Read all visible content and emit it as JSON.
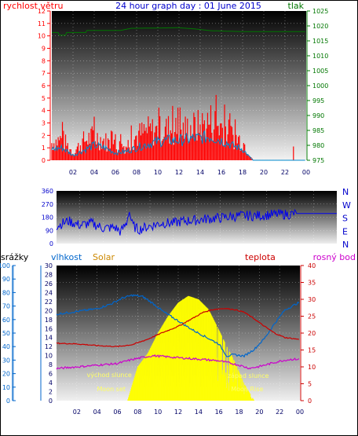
{
  "title": "24 hour graph day : 01 June 2015",
  "colors": {
    "wind": "#ff0000",
    "wind_avg": "#0088cc",
    "pressure": "#007700",
    "direction": "#0000ee",
    "rain": "#0066cc",
    "humidity": "#0066cc",
    "solar": "#ffff00",
    "temperature": "#cc0000",
    "dewpoint": "#cc00cc",
    "axis_title_solar": "#cc8800"
  },
  "chart_data": [
    {
      "type": "line",
      "name": "wind-pressure",
      "left_title": "rychlost větru",
      "right_title": "tlak",
      "x_ticks": [
        "02",
        "04",
        "06",
        "08",
        "10",
        "12",
        "14",
        "16",
        "18",
        "20",
        "22",
        "00"
      ],
      "left_ticks": [
        "0",
        "1",
        "2",
        "3",
        "4",
        "5",
        "6",
        "7",
        "8",
        "9",
        "10",
        "11",
        "12"
      ],
      "right_ticks": [
        "975",
        "980",
        "985",
        "990",
        "995",
        "1000",
        "1005",
        "1010",
        "1015",
        "1020",
        "1025"
      ],
      "ylim_left": [
        0,
        12
      ],
      "ylim_right": [
        975,
        1025
      ],
      "xlim_hours": [
        0,
        24
      ],
      "wind_gust_profile": [
        [
          0,
          1.8
        ],
        [
          1,
          2.2
        ],
        [
          2,
          0.8
        ],
        [
          3,
          2.0
        ],
        [
          4,
          2.5
        ],
        [
          5,
          2.0
        ],
        [
          6,
          1.5
        ],
        [
          7,
          1.5
        ],
        [
          8,
          2.5
        ],
        [
          9,
          3.0
        ],
        [
          10,
          3.0
        ],
        [
          11,
          3.2
        ],
        [
          12,
          3.0
        ],
        [
          13,
          3.3
        ],
        [
          14,
          3.5
        ],
        [
          15,
          4.0
        ],
        [
          16,
          3.5
        ],
        [
          17,
          2.5
        ],
        [
          18,
          2.0
        ],
        [
          18.5,
          1.0
        ],
        [
          19,
          0
        ],
        [
          22.7,
          0
        ],
        [
          22.8,
          1.0
        ],
        [
          22.9,
          0
        ],
        [
          24,
          0
        ]
      ],
      "wind_avg_profile": [
        [
          0,
          0.9
        ],
        [
          1,
          1.0
        ],
        [
          2,
          0.4
        ],
        [
          3,
          0.8
        ],
        [
          4,
          1.2
        ],
        [
          5,
          1.0
        ],
        [
          6,
          0.6
        ],
        [
          7,
          0.7
        ],
        [
          8,
          1.0
        ],
        [
          9,
          1.3
        ],
        [
          10,
          1.5
        ],
        [
          11,
          1.6
        ],
        [
          12,
          1.6
        ],
        [
          13,
          1.7
        ],
        [
          14,
          1.8
        ],
        [
          15,
          1.9
        ],
        [
          16,
          1.6
        ],
        [
          17,
          1.2
        ],
        [
          18,
          0.9
        ],
        [
          18.5,
          0.4
        ],
        [
          19,
          0
        ],
        [
          24,
          0
        ]
      ],
      "pressure": [
        [
          0,
          1017.8
        ],
        [
          0.6,
          1017.8
        ],
        [
          0.7,
          1016.9
        ],
        [
          1.3,
          1016.9
        ],
        [
          1.4,
          1017.8
        ],
        [
          3.2,
          1017.8
        ],
        [
          3.3,
          1018.5
        ],
        [
          6.5,
          1018.5
        ],
        [
          7.5,
          1019.2
        ],
        [
          12,
          1019.4
        ],
        [
          13.5,
          1019.0
        ],
        [
          15,
          1018.4
        ],
        [
          18,
          1018.1
        ],
        [
          24,
          1018.1
        ]
      ]
    },
    {
      "type": "line",
      "name": "wind-direction",
      "left_ticks": [
        "0",
        "90",
        "180",
        "270",
        "360"
      ],
      "right_labels": [
        "N",
        "W",
        "S",
        "E",
        "N"
      ],
      "ylim": [
        0,
        360
      ],
      "direction_profile": [
        [
          0,
          120
        ],
        [
          1,
          155
        ],
        [
          2,
          125
        ],
        [
          3,
          140
        ],
        [
          4,
          105
        ],
        [
          5,
          110
        ],
        [
          5.5,
          80
        ],
        [
          6,
          140
        ],
        [
          6.2,
          230
        ],
        [
          6.5,
          125
        ],
        [
          7,
          95
        ],
        [
          8,
          120
        ],
        [
          9,
          140
        ],
        [
          10,
          140
        ],
        [
          11,
          155
        ],
        [
          12,
          160
        ],
        [
          13,
          170
        ],
        [
          14,
          175
        ],
        [
          15,
          185
        ],
        [
          16,
          190
        ],
        [
          17,
          190
        ],
        [
          18,
          195
        ],
        [
          19,
          200
        ],
        [
          20,
          200
        ],
        [
          20.5,
          205
        ],
        [
          24,
          205
        ]
      ]
    },
    {
      "type": "line",
      "name": "rain-humidity-solar-temperature",
      "rain_title": "srážky",
      "humidity_title": "vlhkost",
      "solar_title": "Solar",
      "temp_title": "teplota",
      "dew_title": "rosný bod",
      "rain_ticks": [
        "0",
        "10",
        "20",
        "30",
        "40",
        "50",
        "60",
        "70",
        "80",
        "90",
        "100"
      ],
      "humidity_ticks": [
        "0",
        "2",
        "4",
        "6",
        "8",
        "10",
        "12",
        "14",
        "16",
        "18",
        "20",
        "22",
        "24",
        "26",
        "28",
        "30"
      ],
      "temp_ticks": [
        "0",
        "5",
        "10",
        "15",
        "20",
        "25",
        "30",
        "35",
        "40"
      ],
      "ylim_left": [
        0,
        100
      ],
      "ylim_right": [
        0,
        40
      ],
      "humidity": [
        [
          0,
          64
        ],
        [
          2,
          66
        ],
        [
          4,
          68
        ],
        [
          5.5,
          72
        ],
        [
          6.5,
          76
        ],
        [
          7.5,
          78
        ],
        [
          8.5,
          77
        ],
        [
          9.5,
          72
        ],
        [
          10.5,
          66
        ],
        [
          12,
          59
        ],
        [
          13.5,
          52
        ],
        [
          15,
          46
        ],
        [
          16,
          42
        ],
        [
          16.8,
          33
        ],
        [
          17.5,
          34
        ],
        [
          18.5,
          33
        ],
        [
          19.5,
          38
        ],
        [
          20.5,
          46
        ],
        [
          21.5,
          57
        ],
        [
          22.5,
          67
        ],
        [
          24,
          73
        ]
      ],
      "temperature": [
        [
          0,
          17.0
        ],
        [
          2,
          16.8
        ],
        [
          4,
          16.3
        ],
        [
          6,
          16.0
        ],
        [
          7.5,
          16.6
        ],
        [
          9,
          18.2
        ],
        [
          10.5,
          20.2
        ],
        [
          12,
          22.0
        ],
        [
          13.5,
          24.5
        ],
        [
          14.5,
          26.2
        ],
        [
          15.5,
          27.0
        ],
        [
          16.5,
          27.3
        ],
        [
          17.5,
          27.0
        ],
        [
          18.5,
          26.2
        ],
        [
          19.5,
          24.2
        ],
        [
          20.5,
          22.0
        ],
        [
          21.5,
          20.0
        ],
        [
          22.5,
          18.7
        ],
        [
          24,
          18.1
        ]
      ],
      "dewpoint": [
        [
          0,
          9.5
        ],
        [
          2,
          10.0
        ],
        [
          4,
          10.5
        ],
        [
          6,
          11.0
        ],
        [
          7.5,
          12.2
        ],
        [
          8.5,
          12.8
        ],
        [
          9.5,
          13.3
        ],
        [
          10.5,
          13.1
        ],
        [
          12,
          12.7
        ],
        [
          14,
          12.3
        ],
        [
          16,
          11.8
        ],
        [
          17,
          11.2
        ],
        [
          18,
          10.5
        ],
        [
          19,
          9.6
        ],
        [
          20,
          10.1
        ],
        [
          21,
          10.9
        ],
        [
          22,
          11.7
        ],
        [
          23,
          12.2
        ],
        [
          24,
          12.3
        ]
      ],
      "solar_envelope": [
        [
          7.0,
          0
        ],
        [
          8.0,
          10
        ],
        [
          9.0,
          14
        ],
        [
          10.0,
          20
        ],
        [
          11.0,
          25
        ],
        [
          12.0,
          29
        ],
        [
          13.0,
          31
        ],
        [
          14.0,
          30
        ],
        [
          15.0,
          27
        ],
        [
          16.0,
          21
        ],
        [
          16.8,
          16
        ],
        [
          17.5,
          12
        ],
        [
          18.5,
          5
        ],
        [
          19.5,
          0
        ]
      ],
      "annotations": [
        {
          "text": "východ slunce",
          "hour": 5.2
        },
        {
          "text": "Moon set",
          "hour": 5.4
        },
        {
          "text": "západ slunce",
          "hour": 18.9
        },
        {
          "text": "Moon Rise",
          "hour": 18.8
        }
      ]
    }
  ]
}
